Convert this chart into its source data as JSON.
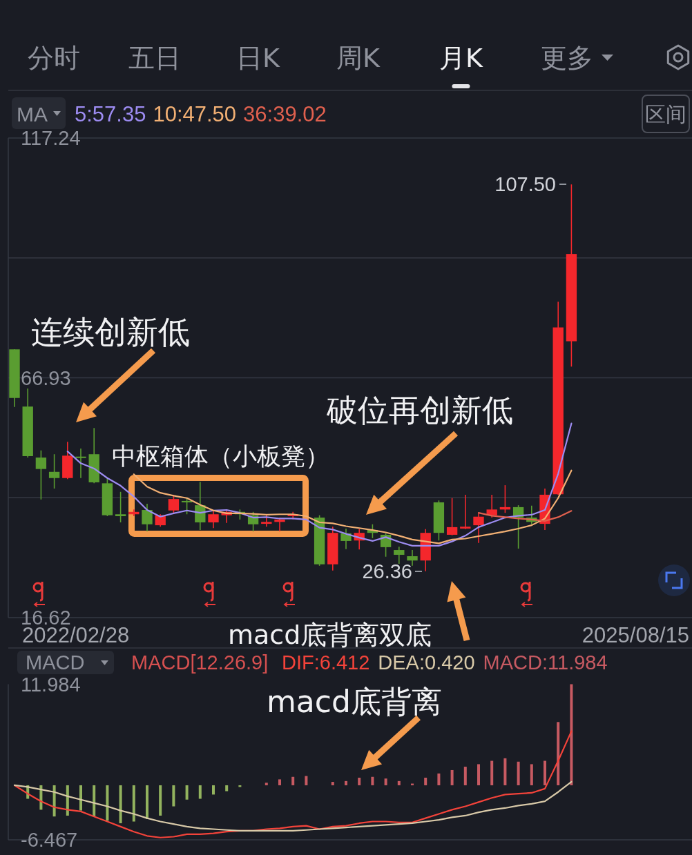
{
  "chart_data": [
    {
      "type": "other",
      "annotations": [
        "分时",
        "五日",
        "日K",
        "周K",
        "月K",
        "更多",
        "区间"
      ]
    },
    {
      "type": "candlestick",
      "legend_title": "MA",
      "legend": "top left",
      "grid": "y",
      "categories": [
        null,
        null,
        null,
        null,
        null,
        null,
        null,
        null,
        null,
        null,
        null,
        null,
        null,
        null,
        null,
        null,
        null,
        null,
        null,
        null,
        null,
        null,
        null,
        null,
        null,
        null,
        null,
        null,
        null,
        null,
        null,
        null,
        null,
        null,
        null,
        null,
        null,
        null,
        null,
        null,
        null,
        null,
        null
      ],
      "ohlc": [
        [
          72.9,
          72.9,
          60.8,
          62.7
        ],
        [
          60.9,
          64.7,
          50.2,
          50.5
        ],
        [
          50.2,
          51.7,
          41.4,
          47.8
        ],
        [
          47.2,
          50.9,
          43.7,
          45.9
        ],
        [
          45.9,
          53.5,
          45.7,
          50.6
        ],
        [
          50.4,
          52.1,
          45.9,
          50.1
        ],
        [
          50.9,
          56.4,
          44.8,
          45.0
        ],
        [
          44.8,
          45.9,
          37.9,
          38.1
        ],
        [
          38.3,
          43.0,
          36.6,
          37.9
        ],
        [
          38.3,
          39.3,
          37.9,
          38.8
        ],
        [
          39.2,
          40.5,
          34.7,
          36.2
        ],
        [
          36.0,
          38.3,
          35.7,
          38.1
        ],
        [
          39.1,
          42.4,
          38.6,
          41.5
        ],
        [
          41.1,
          41.7,
          38.3,
          40.8
        ],
        [
          40.2,
          45.1,
          35.0,
          36.6
        ],
        [
          36.6,
          39.1,
          35.4,
          38.3
        ],
        [
          38.1,
          39.1,
          36.5,
          38.8
        ],
        [
          38.8,
          39.3,
          37.2,
          38.3
        ],
        [
          38.1,
          38.8,
          34.7,
          36.2
        ],
        [
          36.3,
          38.1,
          35.7,
          36.7
        ],
        [
          36.7,
          37.6,
          34.7,
          37.2
        ],
        [
          37.9,
          38.8,
          37.2,
          38.3
        ],
        null,
        [
          37.6,
          38.1,
          27.5,
          27.8
        ],
        [
          27.8,
          35.7,
          26.5,
          34.4
        ],
        [
          34.3,
          35.3,
          31.0,
          32.7
        ],
        [
          32.8,
          35.2,
          30.9,
          34.4
        ],
        [
          35.0,
          36.2,
          33.3,
          34.4
        ],
        [
          34.0,
          34.3,
          29.4,
          31.4
        ],
        [
          30.8,
          31.5,
          27.9,
          29.8
        ],
        [
          29.5,
          30.8,
          27.5,
          28.6
        ],
        [
          28.6,
          35.2,
          26.36,
          34.4
        ],
        [
          40.8,
          41.2,
          32.8,
          34.4
        ],
        [
          34.0,
          41.7,
          33.9,
          35.6
        ],
        [
          35.3,
          42.4,
          35.2,
          35.7
        ],
        [
          36.0,
          38.6,
          32.3,
          37.8
        ],
        [
          38.1,
          42.4,
          37.6,
          39.3
        ],
        [
          39.3,
          44.4,
          38.6,
          39.8
        ],
        [
          39.8,
          40.2,
          31.1,
          37.6
        ],
        [
          37.6,
          40.1,
          36.2,
          36.7
        ],
        [
          36.3,
          43.7,
          35.0,
          42.4
        ],
        [
          42.5,
          82.9,
          42.4,
          77.5
        ],
        [
          74.6,
          107.5,
          69.3,
          92.9
        ]
      ],
      "colors": [
        "#5a9d31",
        "#5a9d31",
        "#5a9d31",
        "#5a9d31",
        "#f4272c",
        "#5a9d31",
        "#5a9d31",
        "#5a9d31",
        "#5a9d31",
        "#f4272c",
        "#5a9d31",
        "#f4272c",
        "#f4272c",
        "#5a9d31",
        "#5a9d31",
        "#f4272c",
        "#f4272c",
        "#5a9d31",
        "#5a9d31",
        "#f4272c",
        "#f4272c",
        "#f4272c",
        null,
        "#5a9d31",
        "#f4272c",
        "#5a9d31",
        "#f4272c",
        "#5a9d31",
        "#5a9d31",
        "#5a9d31",
        "#5a9d31",
        "#f4272c",
        "#5a9d31",
        "#f4272c",
        "#f4272c",
        "#f4272c",
        "#f4272c",
        "#f4272c",
        "#5a9d31",
        "#5a9d31",
        "#f4272c",
        "#f4272c",
        "#f4272c"
      ],
      "series": [
        {
          "type": "line",
          "name": "5:57.35",
          "color": "#9d8cf2",
          "values": [
            null,
            null,
            null,
            null,
            51.5,
            49.0,
            47.9,
            45.9,
            44.3,
            42.0,
            39.2,
            37.8,
            38.5,
            39.1,
            38.6,
            39.1,
            39.2,
            38.6,
            37.6,
            37.7,
            37.4,
            37.4,
            37.2,
            35.5,
            35.1,
            34.2,
            33.4,
            32.7,
            33.5,
            32.5,
            31.7,
            31.7,
            31.7,
            32.6,
            33.8,
            35.6,
            36.6,
            37.6,
            38.0,
            38.2,
            39.2,
            46.8,
            57.35
          ]
        },
        {
          "type": "line",
          "name": "10:47.50",
          "color": "#f2b074",
          "values": [
            null,
            null,
            null,
            null,
            null,
            null,
            null,
            null,
            null,
            46.7,
            44.1,
            42.8,
            42.2,
            41.7,
            40.3,
            39.1,
            38.5,
            38.5,
            38.4,
            38.2,
            38.3,
            38.3,
            37.9,
            36.6,
            36.4,
            35.8,
            35.4,
            35.0,
            34.5,
            33.8,
            33.0,
            32.6,
            32.2,
            33.0,
            33.2,
            33.7,
            34.2,
            34.7,
            35.3,
            36.0,
            37.4,
            41.7,
            47.5
          ]
        },
        {
          "type": "line",
          "name": "36:39.02",
          "color": "#e0604e",
          "values": [
            null,
            null,
            null,
            null,
            null,
            null,
            null,
            null,
            null,
            null,
            null,
            null,
            null,
            null,
            null,
            null,
            null,
            null,
            null,
            null,
            null,
            null,
            null,
            null,
            null,
            null,
            null,
            null,
            null,
            null,
            null,
            null,
            null,
            null,
            null,
            38.6,
            38.0,
            37.7,
            37.4,
            37.2,
            36.9,
            37.7,
            39.02
          ]
        }
      ],
      "ylim": [
        16.62,
        117.24
      ],
      "yticks": [
        16.62,
        {
          "value": 41.78,
          "label": null
        },
        66.93,
        {
          "value": 92.09,
          "label": null
        },
        117.24
      ],
      "annotations": [
        "连续创新低",
        "中枢箱体（小板凳）",
        "破位再创新低",
        "macd底背离双底",
        "107.50",
        "26.36",
        "2022/02/28",
        "2025/08/15"
      ]
    },
    {
      "type": "bar",
      "legend_title": "MACD",
      "title": "MACD[12.26.9]",
      "legend": "top right",
      "categories": [
        null,
        null,
        null,
        null,
        null,
        null,
        null,
        null,
        null,
        null,
        null,
        null,
        null,
        null,
        null,
        null,
        null,
        null,
        null,
        null,
        null,
        null,
        null,
        null,
        null,
        null,
        null,
        null,
        null,
        null,
        null,
        null,
        null,
        null,
        null,
        null,
        null,
        null,
        null,
        null,
        null,
        null,
        null
      ],
      "series": [
        {
          "type": "line",
          "name": "DIF:6.412",
          "color": "#f4433a",
          "values": [
            0.0,
            -1.0,
            -1.9,
            -2.6,
            -2.9,
            -3.1,
            -3.7,
            -4.3,
            -4.9,
            -5.5,
            -6.0,
            -6.2,
            -6.1,
            -5.8,
            -5.8,
            -5.7,
            -5.5,
            -5.4,
            -5.4,
            -5.2,
            -5.1,
            -4.9,
            -4.8,
            -5.2,
            -4.9,
            -4.8,
            -4.5,
            -4.3,
            -4.3,
            -4.4,
            -4.4,
            -3.9,
            -3.4,
            -2.9,
            -2.5,
            -2.0,
            -1.5,
            -1.1,
            -1.0,
            -0.9,
            -0.4,
            2.9,
            6.412
          ]
        },
        {
          "type": "line",
          "name": "DEA:0.420",
          "color": "#d8c9a8",
          "values": [
            0.0,
            -0.2,
            -0.5,
            -0.8,
            -1.3,
            -1.7,
            -2.1,
            -2.5,
            -3.0,
            -3.4,
            -3.9,
            -4.3,
            -4.6,
            -4.9,
            -5.1,
            -5.2,
            -5.3,
            -5.4,
            -5.4,
            -5.4,
            -5.4,
            -5.4,
            -5.3,
            -5.2,
            -5.1,
            -5.0,
            -4.9,
            -4.8,
            -4.7,
            -4.6,
            -4.5,
            -4.3,
            -4.1,
            -3.8,
            -3.6,
            -3.2,
            -2.9,
            -2.7,
            -2.4,
            -2.2,
            -1.9,
            -0.8,
            0.42
          ]
        },
        {
          "type": "bar",
          "name": "MACD:11.984",
          "color": "#c75a62",
          "colors": [
            null,
            "#93b35e",
            "#93b35e",
            "#93b35e",
            "#93b35e",
            "#93b35e",
            "#93b35e",
            "#93b35e",
            "#93b35e",
            "#93b35e",
            "#93b35e",
            "#93b35e",
            "#93b35e",
            "#93b35e",
            "#93b35e",
            "#93b35e",
            "#93b35e",
            "#93b35e",
            null,
            "#c75a62",
            "#c75a62",
            "#c75a62",
            "#c75a62",
            null,
            "#c75a62",
            "#c75a62",
            "#c75a62",
            "#c75a62",
            "#c75a62",
            "#c75a62",
            "#c75a62",
            "#c75a62",
            "#c75a62",
            "#c75a62",
            "#c75a62",
            "#c75a62",
            "#c75a62",
            "#c75a62",
            "#c75a62",
            "#c75a62",
            "#c75a62",
            "#c75a62",
            "#c75a62"
          ],
          "values": [
            null,
            -1.6,
            -2.9,
            -3.7,
            -3.6,
            -3.0,
            -3.7,
            -4.2,
            -4.5,
            -4.3,
            -4.0,
            -3.6,
            -2.5,
            -1.7,
            -1.6,
            -1.1,
            -0.7,
            -0.2,
            null,
            0.3,
            0.7,
            1.0,
            1.1,
            null,
            0.4,
            0.5,
            0.9,
            1.0,
            0.8,
            0.5,
            0.2,
            0.9,
            1.4,
            1.8,
            2.2,
            2.5,
            2.9,
            3.2,
            2.8,
            2.5,
            2.9,
            7.5,
            11.984
          ]
        }
      ],
      "ylim": [
        -6.467,
        11.984
      ],
      "yticks": [
        -6.467,
        11.984
      ],
      "annotations": [
        "macd底背离"
      ]
    }
  ]
}
